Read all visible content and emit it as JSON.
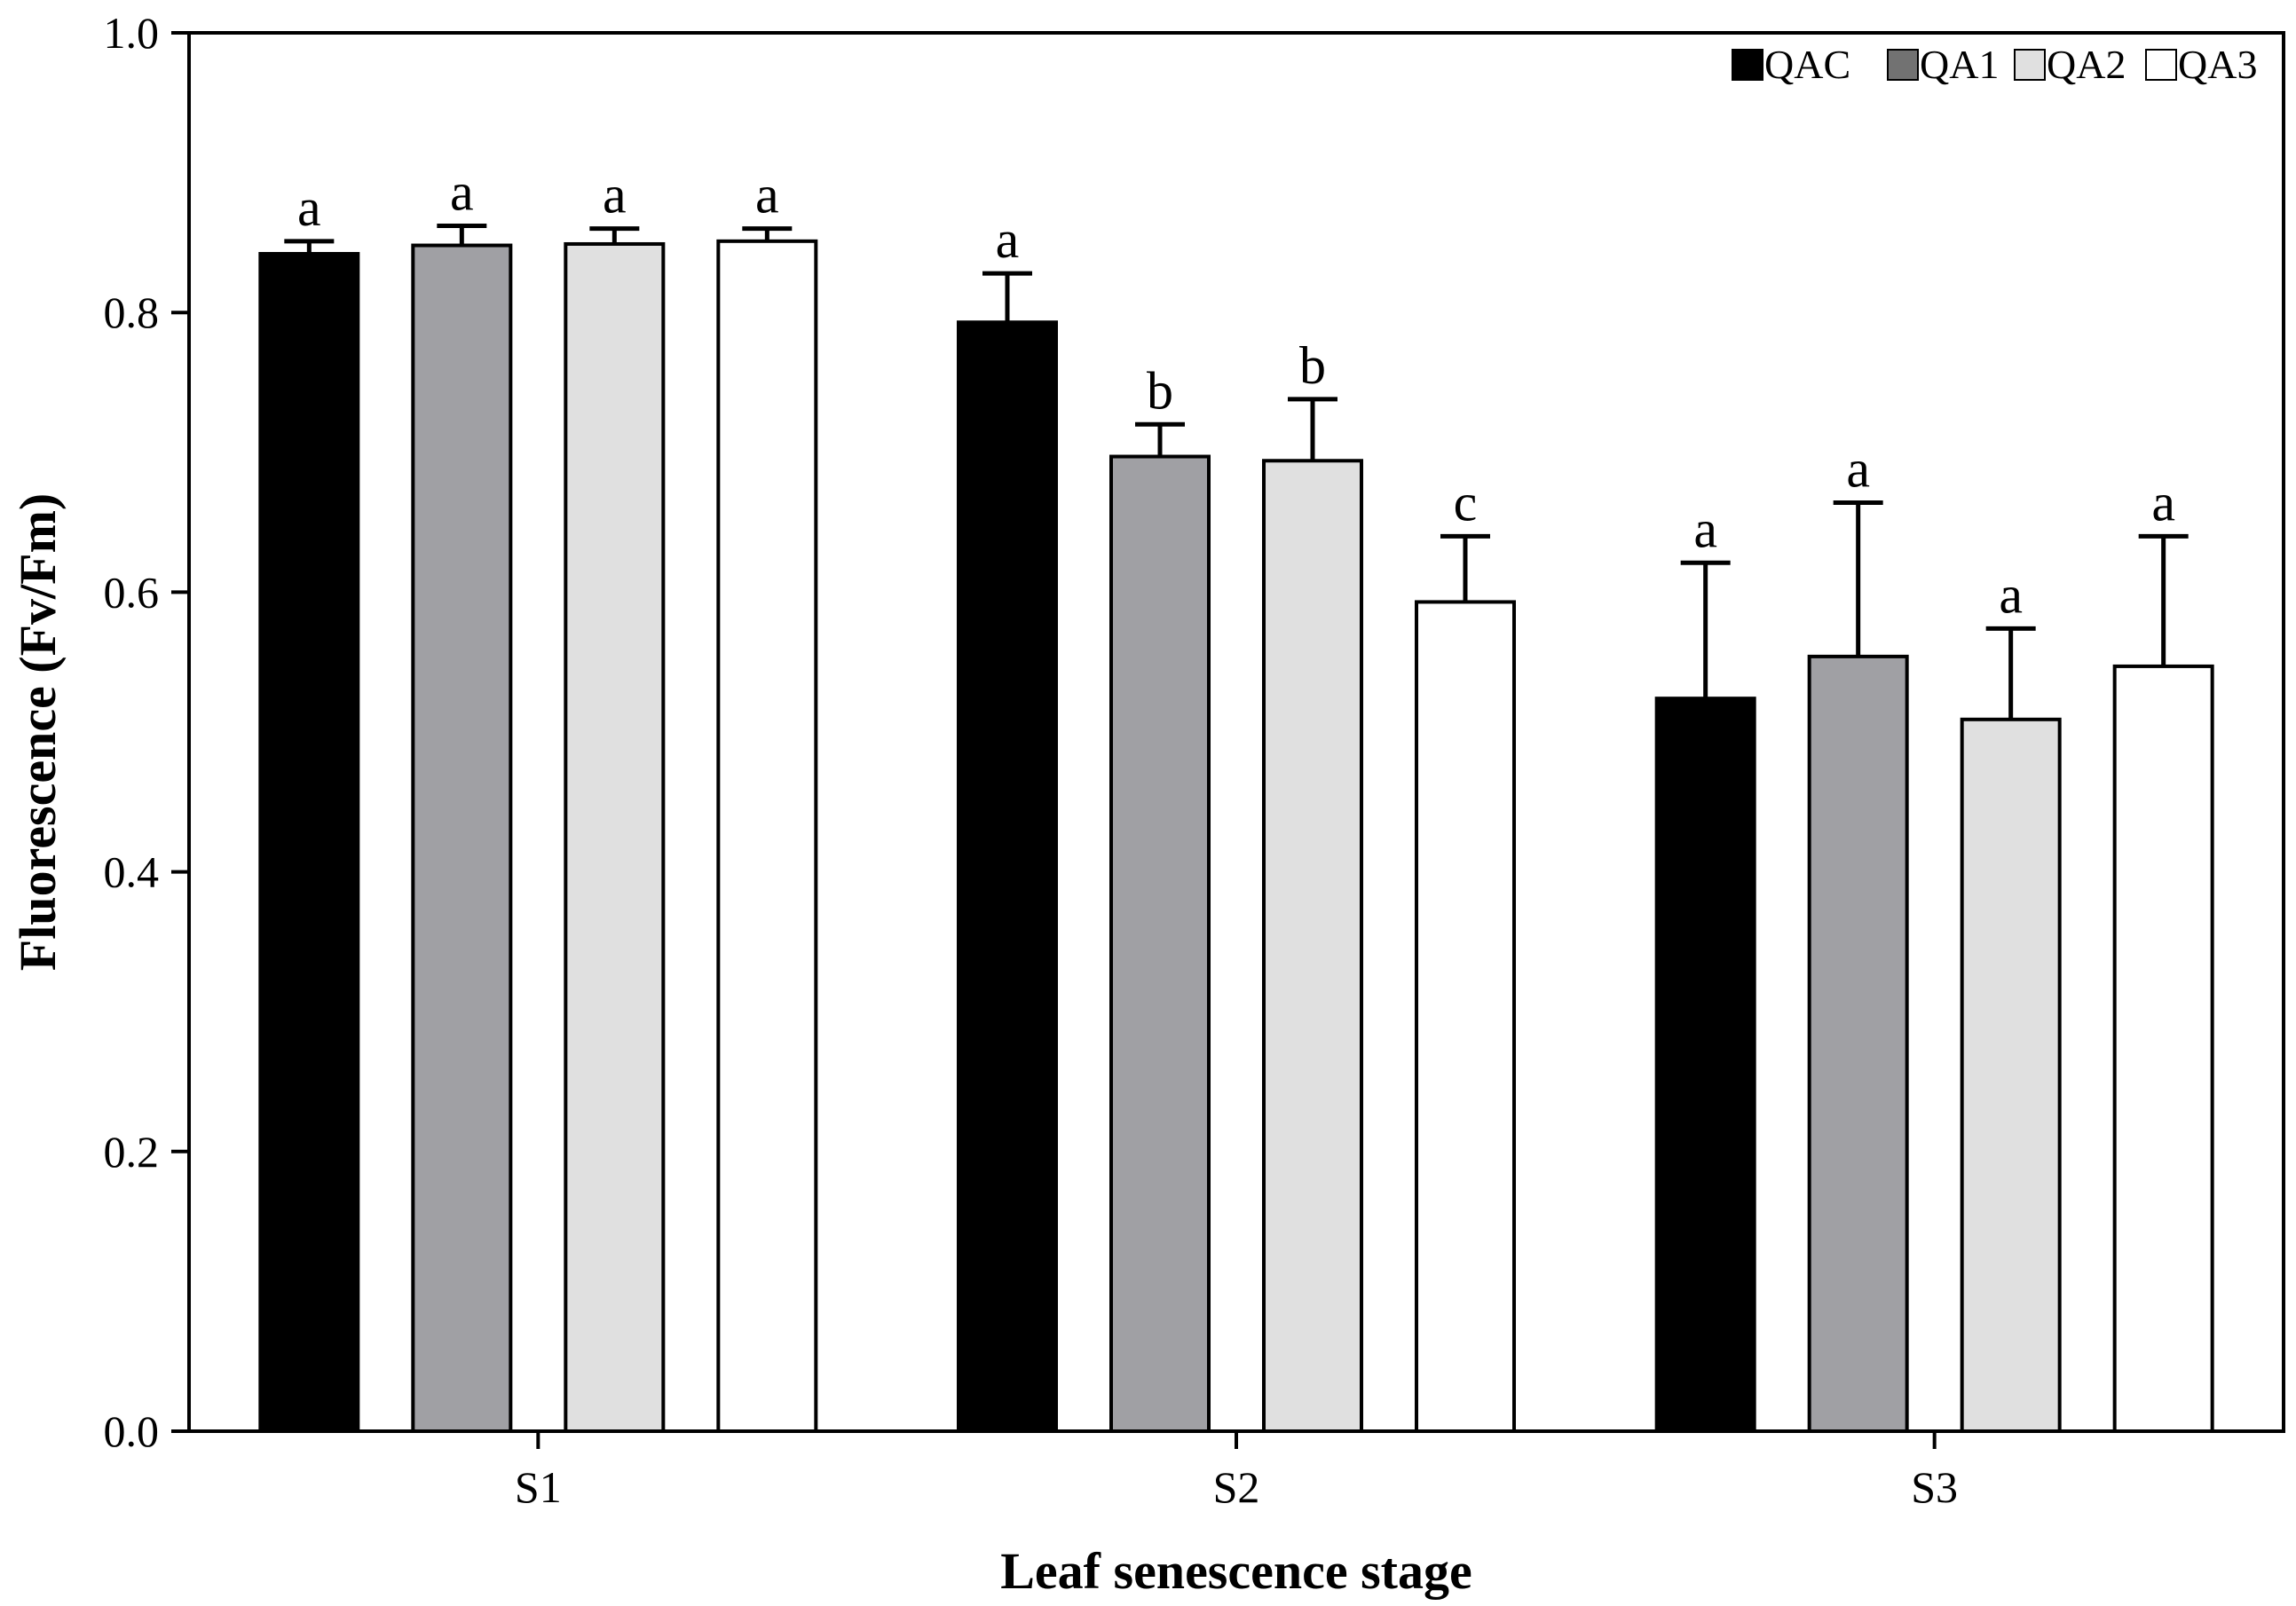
{
  "chart_data": {
    "type": "bar",
    "title": "",
    "xlabel": "Leaf senescence stage",
    "ylabel": "Fluorescence (Fv/Fm)",
    "ylim": [
      0.0,
      1.0
    ],
    "yticks": [
      "0.0",
      "0.2",
      "0.4",
      "0.6",
      "0.8",
      "1.0"
    ],
    "categories": [
      "S1",
      "S2",
      "S3"
    ],
    "legend_position": "top-right",
    "series": [
      {
        "name": "QAC",
        "color": "#000000",
        "values": [
          0.842,
          0.793,
          0.524
        ],
        "errors": [
          0.009,
          0.035,
          0.097
        ],
        "letters": [
          "a",
          "a",
          "a"
        ]
      },
      {
        "name": "QA1",
        "color": "#a0a0a4",
        "values": [
          0.848,
          0.697,
          0.554
        ],
        "errors": [
          0.014,
          0.023,
          0.11
        ],
        "letters": [
          "a",
          "b",
          "a"
        ]
      },
      {
        "name": "QA2",
        "color": "#e0e0e0",
        "values": [
          0.849,
          0.694,
          0.509
        ],
        "errors": [
          0.011,
          0.044,
          0.065
        ],
        "letters": [
          "a",
          "b",
          "a"
        ]
      },
      {
        "name": "QA3",
        "color": "#ffffff",
        "values": [
          0.851,
          0.593,
          0.547
        ],
        "errors": [
          0.009,
          0.047,
          0.093
        ],
        "letters": [
          "a",
          "c",
          "a"
        ]
      }
    ],
    "legend_colors": [
      "#000000",
      "#727272",
      "#e0e0e0",
      "#ffffff"
    ]
  }
}
